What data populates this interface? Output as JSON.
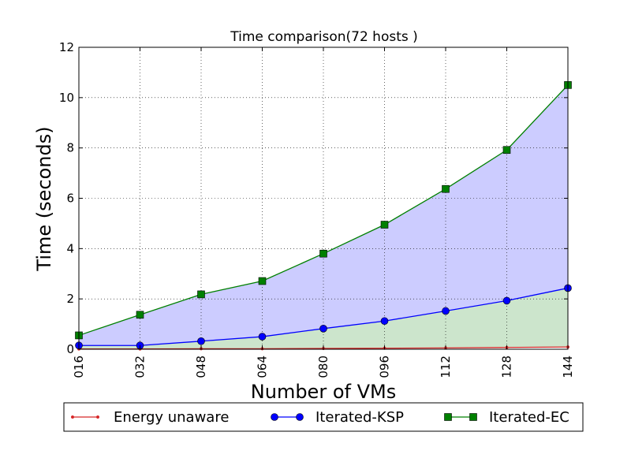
{
  "chart_data": {
    "type": "line",
    "title": "Time comparison(72 hosts )",
    "xlabel": "Number of VMs",
    "ylabel": "Time (seconds)",
    "x": [
      "016",
      "032",
      "048",
      "064",
      "080",
      "096",
      "112",
      "128",
      "144"
    ],
    "xlim": [
      16,
      144
    ],
    "ylim": [
      0,
      12
    ],
    "yticks": [
      "0",
      "2",
      "4",
      "6",
      "8",
      "10",
      "12"
    ],
    "grid": true,
    "legend_position": "bottom",
    "series": [
      {
        "name": "Energy unaware",
        "color": "#d62728",
        "marker": "dot",
        "values": [
          0.01,
          0.01,
          0.02,
          0.02,
          0.03,
          0.04,
          0.05,
          0.07,
          0.09
        ]
      },
      {
        "name": "Iterated-KSP",
        "color": "#0000ff",
        "marker": "circle",
        "values": [
          0.15,
          0.15,
          0.32,
          0.5,
          0.82,
          1.12,
          1.52,
          1.93,
          2.43
        ]
      },
      {
        "name": "Iterated-EC",
        "color": "#008000",
        "marker": "square",
        "values": [
          0.55,
          1.37,
          2.18,
          2.71,
          3.8,
          4.95,
          6.37,
          7.92,
          10.5
        ]
      }
    ],
    "fills": [
      {
        "between": [
          "Iterated-KSP",
          "Iterated-EC"
        ],
        "color": "#ccccff"
      },
      {
        "between": [
          "Energy unaware",
          "Iterated-KSP"
        ],
        "color": "#cce5cc"
      }
    ]
  }
}
